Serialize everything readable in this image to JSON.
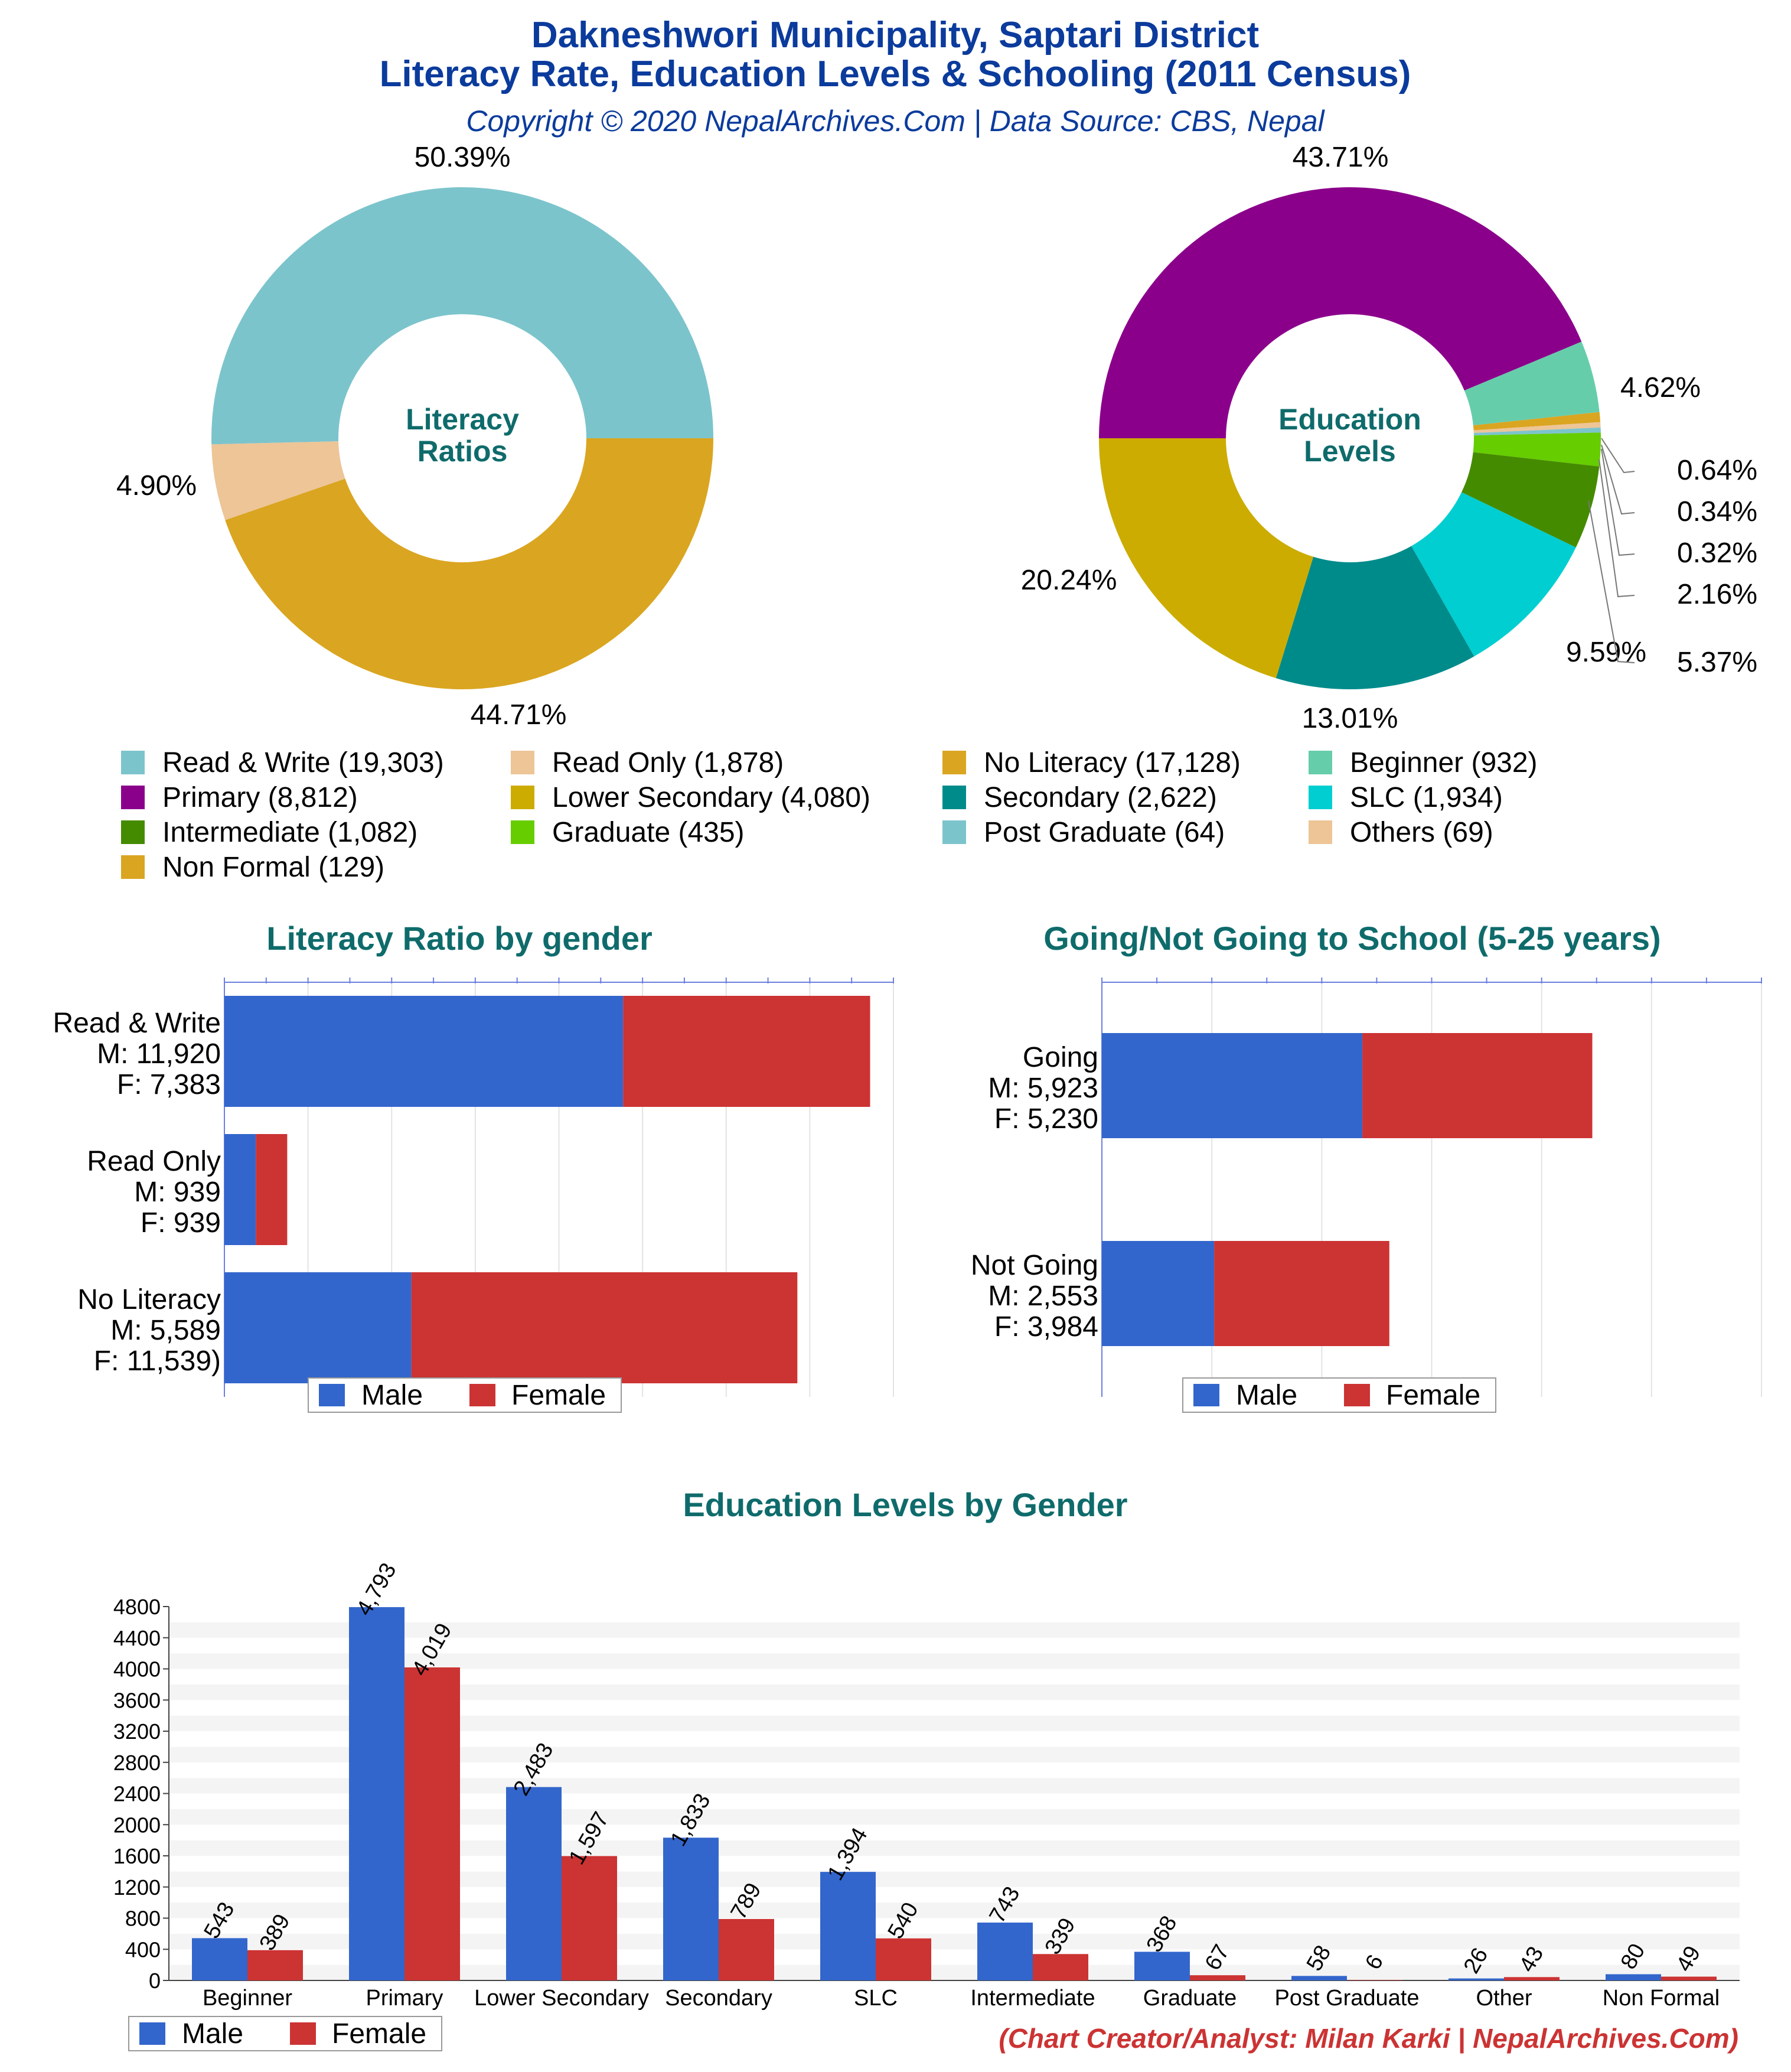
{
  "header": {
    "title_line1": "Dakneshwori Municipality, Saptari District",
    "title_line2": "Literacy Rate, Education Levels & Schooling (2011 Census)",
    "subtitle": "Copyright © 2020 NepalArchives.Com | Data Source: CBS, Nepal"
  },
  "colors": {
    "title": "#0b3b9c",
    "section_title": "#0f6b6b",
    "male": "#3366cc",
    "female": "#cc3333",
    "credit": "#cc3333"
  },
  "literacy_donut": {
    "center_line1": "Literacy",
    "center_line2": "Ratios",
    "slice_labels": [
      "50.39%",
      "4.90%",
      "44.71%"
    ]
  },
  "education_donut": {
    "center_line1": "Education",
    "center_line2": "Levels",
    "slice_labels": [
      "43.71%",
      "4.62%",
      "0.64%",
      "0.34%",
      "0.32%",
      "2.16%",
      "5.37%",
      "9.59%",
      "13.01%",
      "20.24%"
    ]
  },
  "legend": [
    {
      "label": "Read & Write (19,303)",
      "color": "#7cc4cc"
    },
    {
      "label": "Read Only (1,878)",
      "color": "#edc597"
    },
    {
      "label": "No Literacy (17,128)",
      "color": "#daa520"
    },
    {
      "label": "Beginner (932)",
      "color": "#66cdaa"
    },
    {
      "label": "Primary (8,812)",
      "color": "#8b008b"
    },
    {
      "label": "Lower Secondary (4,080)",
      "color": "#ccac00"
    },
    {
      "label": "Secondary (2,622)",
      "color": "#008b8b"
    },
    {
      "label": "SLC (1,934)",
      "color": "#00ced1"
    },
    {
      "label": "Intermediate (1,082)",
      "color": "#458b00"
    },
    {
      "label": "Graduate (435)",
      "color": "#66cd00"
    },
    {
      "label": "Post Graduate (64)",
      "color": "#7cc4cc"
    },
    {
      "label": "Others (69)",
      "color": "#edc597"
    },
    {
      "label": "Non Formal (129)",
      "color": "#daa520"
    }
  ],
  "literacy_gender": {
    "title": "Literacy Ratio by gender",
    "rows": [
      {
        "line1": "Read & Write",
        "line2": "M: 11,920",
        "line3": "F: 7,383"
      },
      {
        "line1": "Read Only",
        "line2": "M: 939",
        "line3": "F: 939"
      },
      {
        "line1": "No Literacy",
        "line2": "M: 5,589",
        "line3": "F: 11,539)"
      }
    ],
    "legend_male": "Male",
    "legend_female": "Female"
  },
  "school": {
    "title": "Going/Not Going to School (5-25 years)",
    "rows": [
      {
        "line1": "Going",
        "line2": "M: 5,923",
        "line3": "F: 5,230"
      },
      {
        "line1": "Not Going",
        "line2": "M: 2,553",
        "line3": "F: 3,984"
      }
    ],
    "legend_male": "Male",
    "legend_female": "Female"
  },
  "edu_gender": {
    "title": "Education Levels by Gender",
    "legend_male": "Male",
    "legend_female": "Female"
  },
  "credit": "(Chart Creator/Analyst: Milan Karki | NepalArchives.Com)",
  "chart_data": [
    {
      "type": "pie",
      "title": "Literacy Ratios",
      "categories": [
        "Read & Write",
        "Read Only",
        "No Literacy"
      ],
      "values": [
        19303,
        1878,
        17128
      ],
      "percent": [
        50.39,
        4.9,
        44.71
      ]
    },
    {
      "type": "pie",
      "title": "Education Levels",
      "categories": [
        "Primary",
        "Beginner",
        "Non Formal",
        "Others",
        "Post Graduate",
        "Graduate",
        "Intermediate",
        "SLC",
        "Secondary",
        "Lower Secondary"
      ],
      "values": [
        8812,
        932,
        129,
        69,
        64,
        435,
        1082,
        1934,
        2622,
        4080
      ],
      "percent": [
        43.71,
        4.62,
        0.64,
        0.34,
        0.32,
        2.16,
        5.37,
        9.59,
        13.01,
        20.24
      ]
    },
    {
      "type": "bar",
      "title": "Literacy Ratio by gender",
      "orientation": "horizontal-stacked",
      "categories": [
        "Read & Write",
        "Read Only",
        "No Literacy"
      ],
      "series": [
        {
          "name": "Male",
          "values": [
            11920,
            939,
            5589
          ]
        },
        {
          "name": "Female",
          "values": [
            7383,
            939,
            11539
          ]
        }
      ],
      "xlim": [
        0,
        20000
      ]
    },
    {
      "type": "bar",
      "title": "Going/Not Going to School (5-25 years)",
      "orientation": "horizontal-stacked",
      "categories": [
        "Going",
        "Not Going"
      ],
      "series": [
        {
          "name": "Male",
          "values": [
            5923,
            2553
          ]
        },
        {
          "name": "Female",
          "values": [
            5230,
            3984
          ]
        }
      ],
      "xlim": [
        0,
        15000
      ]
    },
    {
      "type": "bar",
      "title": "Education Levels by Gender",
      "categories": [
        "Beginner",
        "Primary",
        "Lower Secondary",
        "Secondary",
        "SLC",
        "Intermediate",
        "Graduate",
        "Post Graduate",
        "Other",
        "Non Formal"
      ],
      "series": [
        {
          "name": "Male",
          "values": [
            543,
            4793,
            2483,
            1833,
            1394,
            743,
            368,
            58,
            26,
            80
          ]
        },
        {
          "name": "Female",
          "values": [
            389,
            4019,
            1597,
            789,
            540,
            339,
            67,
            6,
            43,
            49
          ]
        }
      ],
      "value_labels_male": [
        "543",
        "4,793",
        "2,483",
        "1,833",
        "1,394",
        "743",
        "368",
        "58",
        "26",
        "80"
      ],
      "value_labels_female": [
        "389",
        "4,019",
        "1,597",
        "789",
        "540",
        "339",
        "67",
        "6",
        "43",
        "49"
      ],
      "yticks": [
        "0",
        "400",
        "800",
        "1200",
        "1600",
        "2000",
        "2400",
        "2800",
        "3200",
        "3600",
        "4000",
        "4400",
        "4800"
      ],
      "ylim": [
        0,
        4800
      ],
      "grid": true
    }
  ]
}
